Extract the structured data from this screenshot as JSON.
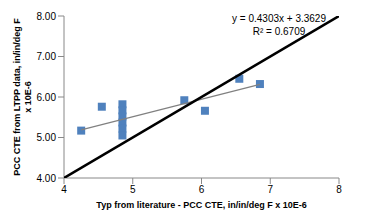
{
  "chart_data": {
    "type": "scatter",
    "xlabel": "Typ from literature - PCC CTE, in/in/deg F x 10E-6",
    "ylabel": "PCC CTE from LTPP data, in/in/deg F x 10E-6",
    "xlim": [
      4,
      8
    ],
    "xticks": [
      4,
      5,
      6,
      7,
      8
    ],
    "ylim": [
      4,
      8
    ],
    "yticks": [
      {
        "value": 4,
        "label": "4.00"
      },
      {
        "value": 5,
        "label": "5.00"
      },
      {
        "value": 6,
        "label": "6.00"
      },
      {
        "value": 7,
        "label": "7.00"
      },
      {
        "value": 8,
        "label": "8.00"
      }
    ],
    "grid": false,
    "annotations": [
      "y = 0.4303x + 3.3629",
      "R² = 0.6709"
    ],
    "series": [
      {
        "type": "scatter",
        "marker": "square",
        "color": "#4F81BD",
        "x": [
          4.25,
          4.55,
          4.85,
          4.85,
          4.85,
          4.85,
          4.85,
          4.85,
          5.75,
          6.05,
          6.55,
          6.85
        ],
        "values": [
          5.17,
          5.76,
          5.82,
          5.67,
          5.52,
          5.37,
          5.22,
          5.05,
          5.92,
          5.66,
          6.45,
          6.32
        ]
      },
      {
        "type": "line",
        "color": "#808080",
        "x": [
          4.25,
          6.85
        ],
        "values": [
          5.19,
          6.31
        ]
      },
      {
        "type": "line",
        "color": "#000000",
        "x": [
          4,
          8
        ],
        "values": [
          4,
          8
        ]
      }
    ]
  }
}
